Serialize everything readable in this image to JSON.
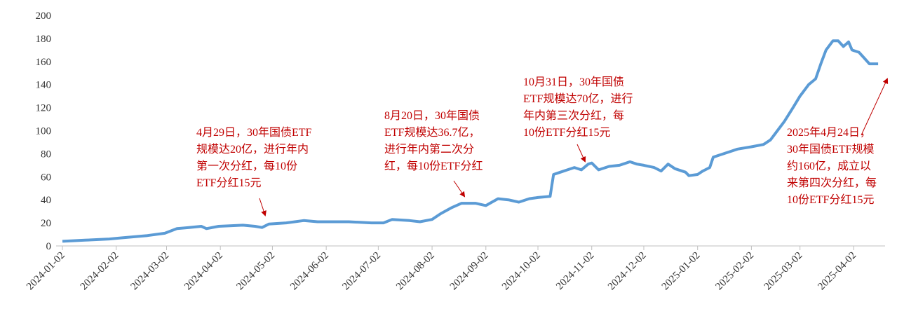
{
  "chart_data": {
    "type": "line",
    "x": [
      "2024-01-02",
      "2024-01-15",
      "2024-01-29",
      "2024-02-05",
      "2024-02-20",
      "2024-03-01",
      "2024-03-08",
      "2024-03-15",
      "2024-03-22",
      "2024-03-25",
      "2024-04-01",
      "2024-04-15",
      "2024-04-22",
      "2024-04-26",
      "2024-04-30",
      "2024-05-10",
      "2024-05-20",
      "2024-05-28",
      "2024-06-15",
      "2024-06-28",
      "2024-07-05",
      "2024-07-10",
      "2024-07-20",
      "2024-07-26",
      "2024-08-02",
      "2024-08-07",
      "2024-08-13",
      "2024-08-19",
      "2024-08-27",
      "2024-09-02",
      "2024-09-09",
      "2024-09-15",
      "2024-09-21",
      "2024-09-27",
      "2024-10-02",
      "2024-10-09",
      "2024-10-11",
      "2024-10-15",
      "2024-10-19",
      "2024-10-23",
      "2024-10-27",
      "2024-10-31",
      "2024-11-02",
      "2024-11-06",
      "2024-11-12",
      "2024-11-18",
      "2024-11-24",
      "2024-11-28",
      "2024-12-02",
      "2024-12-08",
      "2024-12-12",
      "2024-12-16",
      "2024-12-20",
      "2024-12-26",
      "2024-12-28",
      "2025-01-02",
      "2025-01-05",
      "2025-01-09",
      "2025-01-11",
      "2025-01-15",
      "2025-01-21",
      "2025-01-25",
      "2025-02-02",
      "2025-02-09",
      "2025-02-13",
      "2025-02-17",
      "2025-02-21",
      "2025-02-26",
      "2025-03-02",
      "2025-03-07",
      "2025-03-11",
      "2025-03-14",
      "2025-03-17",
      "2025-03-21",
      "2025-03-24",
      "2025-03-27",
      "2025-03-30",
      "2025-04-01",
      "2025-04-05",
      "2025-04-08",
      "2025-04-11",
      "2025-04-16"
    ],
    "series": [
      {
        "color": "#5b9bd5",
        "values": [
          4,
          5,
          6,
          7,
          9,
          11,
          15,
          16,
          17,
          15,
          17,
          18,
          17,
          16,
          19,
          20,
          22,
          21,
          21,
          20,
          20,
          23,
          22,
          21,
          23,
          28,
          33,
          37,
          37,
          35,
          41,
          40,
          38,
          41,
          42,
          43,
          62,
          64,
          66,
          68,
          66,
          71,
          72,
          66,
          69,
          70,
          73,
          71,
          70,
          68,
          65,
          71,
          67,
          64,
          61,
          62,
          65,
          68,
          77,
          79,
          82,
          84,
          86,
          88,
          92,
          100,
          108,
          120,
          130,
          140,
          145,
          158,
          170,
          178,
          178,
          173,
          177,
          170,
          168,
          163,
          158,
          158
        ]
      }
    ],
    "xlim": [
      "2024-01-02",
      "2025-04-18"
    ],
    "xticks": [
      "2024-01-02",
      "2024-02-02",
      "2024-03-02",
      "2024-04-02",
      "2024-05-02",
      "2024-06-02",
      "2024-07-02",
      "2024-08-02",
      "2024-09-02",
      "2024-10-02",
      "2024-11-02",
      "2024-12-02",
      "2025-01-02",
      "2025-02-02",
      "2025-03-02",
      "2025-04-02"
    ],
    "ylim": [
      0,
      200
    ],
    "yticks": [
      0,
      20,
      40,
      60,
      80,
      100,
      120,
      140,
      160,
      180,
      200
    ],
    "grid": false,
    "annotations": [
      {
        "lines": [
          "4月29日，30年国债ETF",
          "规模达20亿，进行年内",
          "第一次分红，每10份",
          "ETF分红15元"
        ]
      },
      {
        "lines": [
          "8月20日，30年国债",
          "ETF规模达36.7亿，",
          "进行年内第二次分",
          "红，每10份ETF分红"
        ]
      },
      {
        "lines": [
          "10月31日，30年国债",
          "ETF规模达70亿，进行",
          "年内第三次分红，每",
          "10份ETF分红15元"
        ]
      },
      {
        "lines": [
          "2025年4月24日，",
          "30年国债ETF规模",
          "约160亿，成立以",
          "来第四次分红，每",
          "10份ETF分红15元"
        ]
      }
    ]
  }
}
